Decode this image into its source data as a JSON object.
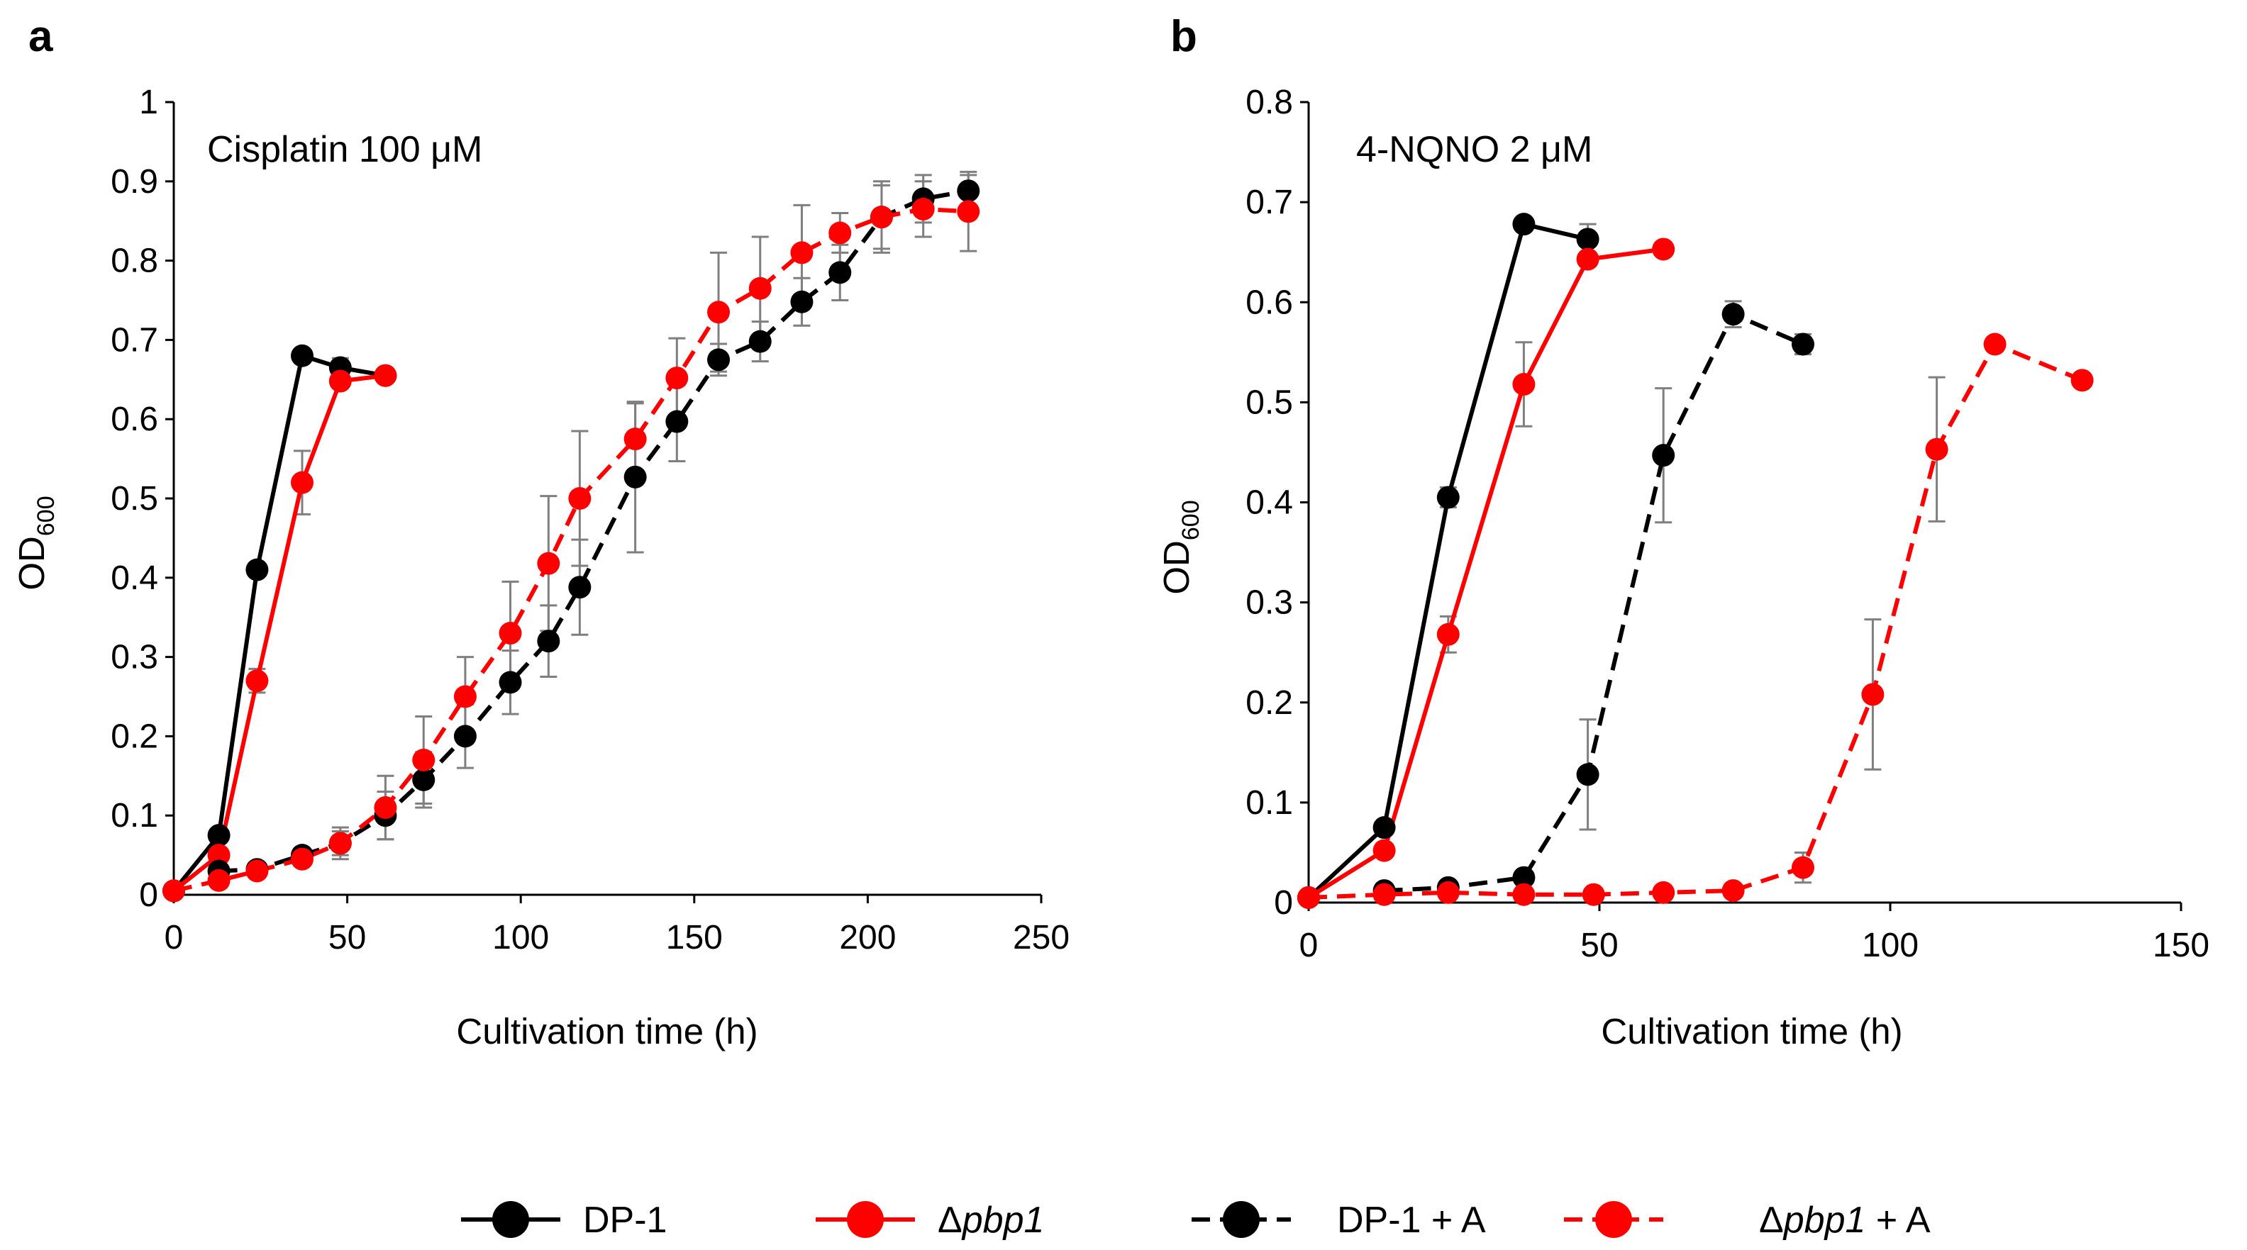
{
  "colors": {
    "black": "#000000",
    "red": "#ff0000",
    "errorbar": "#7f7f7f"
  },
  "legend": [
    {
      "label": "DP-1",
      "italic": "",
      "suffix": "",
      "color": "#000000",
      "dash": false
    },
    {
      "label": "Δ",
      "italic": "pbp1",
      "suffix": "",
      "color": "#ff0000",
      "dash": false
    },
    {
      "label": "DP-1 + A",
      "italic": "",
      "suffix": "",
      "color": "#000000",
      "dash": true
    },
    {
      "label": "Δ",
      "italic": "pbp1",
      "suffix": " + A",
      "color": "#ff0000",
      "dash": true
    }
  ],
  "chart_data": [
    {
      "type": "line",
      "panel": "a",
      "annotation": "Cisplatin 100 μM",
      "xlabel": "Cultivation time (h)",
      "ylabel_main": "OD",
      "ylabel_sub": "600",
      "xlim": [
        0,
        250
      ],
      "ylim": [
        0,
        1
      ],
      "xticks": [
        0,
        50,
        100,
        150,
        200,
        250
      ],
      "yticks": [
        0,
        0.1,
        0.2,
        0.3,
        0.4,
        0.5,
        0.6,
        0.7,
        0.8,
        0.9,
        1
      ],
      "ytick_labels": [
        "0",
        "0.1",
        "0.2",
        "0.3",
        "0.4",
        "0.5",
        "0.6",
        "0.7",
        "0.8",
        "0.9",
        "1"
      ],
      "series": [
        {
          "name": "DP-1",
          "color": "#000000",
          "dash": false,
          "x": [
            0,
            13,
            24,
            37,
            48,
            61
          ],
          "y": [
            0.005,
            0.075,
            0.41,
            0.68,
            0.665,
            0.655
          ],
          "err": [
            0,
            0,
            0,
            0,
            0.012,
            0
          ]
        },
        {
          "name": "Δpbp1",
          "color": "#ff0000",
          "dash": false,
          "x": [
            0,
            13,
            24,
            37,
            48,
            61
          ],
          "y": [
            0.005,
            0.05,
            0.27,
            0.52,
            0.648,
            0.655
          ],
          "err": [
            0,
            0,
            0.015,
            0.04,
            0,
            0
          ]
        },
        {
          "name": "DP-1 + A",
          "color": "#000000",
          "dash": true,
          "x": [
            13,
            24,
            37,
            48,
            61,
            72,
            84,
            97,
            108,
            117,
            133,
            145,
            157,
            169,
            181,
            192,
            204,
            216,
            229
          ],
          "y": [
            0.03,
            0.032,
            0.05,
            0.065,
            0.1,
            0.145,
            0.2,
            0.268,
            0.32,
            0.388,
            0.527,
            0.597,
            0.675,
            0.698,
            0.748,
            0.785,
            0.855,
            0.878,
            0.888
          ],
          "err": [
            0,
            0,
            0,
            0.015,
            0.03,
            0.035,
            0.04,
            0.04,
            0.045,
            0.06,
            0.095,
            0.05,
            0.02,
            0.025,
            0.03,
            0.035,
            0.04,
            0.03,
            0.02
          ]
        },
        {
          "name": "Δpbp1 + A",
          "color": "#ff0000",
          "dash": true,
          "x": [
            0,
            13,
            24,
            37,
            48,
            61,
            72,
            84,
            97,
            108,
            117,
            133,
            145,
            157,
            169,
            181,
            192,
            204,
            216,
            229
          ],
          "y": [
            0.005,
            0.018,
            0.03,
            0.045,
            0.065,
            0.11,
            0.17,
            0.25,
            0.33,
            0.418,
            0.5,
            0.575,
            0.652,
            0.735,
            0.765,
            0.81,
            0.835,
            0.855,
            0.865,
            0.862
          ],
          "err": [
            0,
            0,
            0,
            0,
            0.02,
            0.04,
            0.055,
            0.05,
            0.065,
            0.085,
            0.085,
            0.045,
            0.05,
            0.075,
            0.065,
            0.06,
            0.025,
            0.045,
            0.035,
            0.05
          ]
        }
      ]
    },
    {
      "type": "line",
      "panel": "b",
      "annotation": "4-NQNO 2 μM",
      "xlabel": "Cultivation time (h)",
      "ylabel_main": "OD",
      "ylabel_sub": "600",
      "xlim": [
        0,
        150
      ],
      "ylim": [
        0,
        0.8
      ],
      "xticks": [
        0,
        50,
        100,
        150
      ],
      "yticks": [
        0,
        0.1,
        0.2,
        0.3,
        0.4,
        0.5,
        0.6,
        0.7,
        0.8
      ],
      "ytick_labels": [
        "0",
        "0.1",
        "0.2",
        "0.3",
        "0.4",
        "0.5",
        "0.6",
        "0.7",
        "0.8"
      ],
      "series": [
        {
          "name": "DP-1",
          "color": "#000000",
          "dash": false,
          "x": [
            0,
            13,
            24,
            37,
            48
          ],
          "y": [
            0.005,
            0.075,
            0.405,
            0.678,
            0.663
          ],
          "err": [
            0,
            0,
            0.01,
            0,
            0.015
          ]
        },
        {
          "name": "Δpbp1",
          "color": "#ff0000",
          "dash": false,
          "x": [
            0,
            13,
            24,
            37,
            48,
            61
          ],
          "y": [
            0.005,
            0.052,
            0.268,
            0.518,
            0.643,
            0.653
          ],
          "err": [
            0,
            0,
            0.018,
            0.042,
            0,
            0
          ]
        },
        {
          "name": "DP-1 + A",
          "color": "#000000",
          "dash": true,
          "x": [
            13,
            24,
            37,
            48,
            61,
            73,
            85
          ],
          "y": [
            0.012,
            0.015,
            0.025,
            0.128,
            0.447,
            0.588,
            0.558
          ],
          "err": [
            0,
            0,
            0,
            0.055,
            0.067,
            0.013,
            0.01
          ]
        },
        {
          "name": "Δpbp1 + A",
          "color": "#ff0000",
          "dash": true,
          "x": [
            0,
            13,
            24,
            37,
            49,
            61,
            73,
            85,
            97,
            108,
            118,
            133
          ],
          "y": [
            0.005,
            0.008,
            0.01,
            0.008,
            0.008,
            0.01,
            0.012,
            0.035,
            0.208,
            0.453,
            0.558,
            0.522
          ],
          "err": [
            0,
            0,
            0,
            0,
            0,
            0,
            0,
            0.015,
            0.075,
            0.072,
            0,
            0
          ]
        }
      ]
    }
  ]
}
